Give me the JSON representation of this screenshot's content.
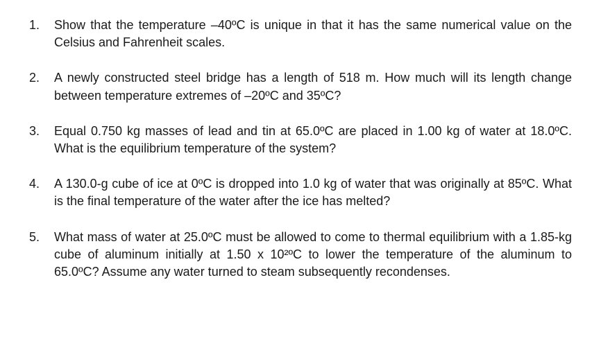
{
  "document": {
    "text_color": "#1a1a1a",
    "background_color": "#ffffff",
    "font_family": "Arial",
    "font_size_pt": 13,
    "line_height": 1.4,
    "list_style": "numbered",
    "text_align": "justify",
    "questions": [
      {
        "raw_text": "Show that the temperature –40ºC is unique in that it has the same numerical value on the Celsius and Fahrenheit scales."
      },
      {
        "raw_text": "A newly constructed steel bridge has a length of 518 m. How much will its length change between temperature extremes of –20ºC and 35ºC?"
      },
      {
        "raw_text": "Equal 0.750 kg masses of lead and tin at 65.0ºC are placed in 1.00 kg of water at 18.0ºC. What is the equilibrium temperature of the system?"
      },
      {
        "raw_text": "A 130.0-g cube of ice at 0ºC is dropped into 1.0 kg of water that was originally at 85ºC. What is the final temperature of the water after the ice has melted?"
      },
      {
        "raw_text": "What mass of water at 25.0ºC must be allowed to come to thermal equilibrium with a 1.85-kg cube of aluminum initially at 1.50 x 10²ºC to lower the temperature of the aluminum to 65.0ºC? Assume any water turned to steam subsequently recondenses."
      }
    ]
  }
}
